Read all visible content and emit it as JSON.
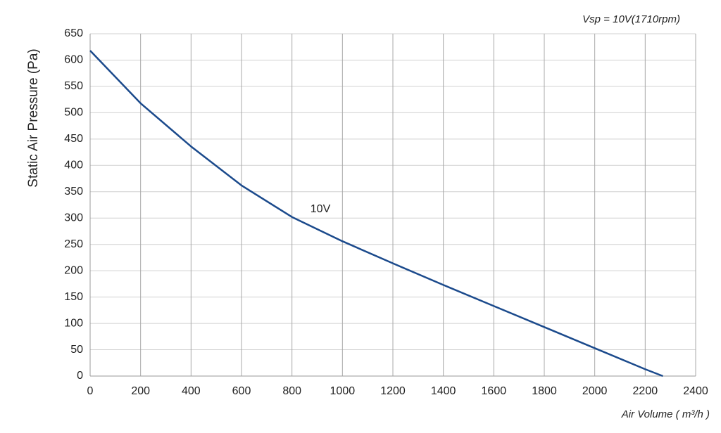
{
  "chart_data": {
    "type": "line",
    "title": "Vsp = 10V(1710rpm)",
    "x_label": "Air Volume ( m³/h )",
    "y_label": "Static Air Pressure  (Pa)",
    "annotation": "10V",
    "x": [
      0,
      200,
      400,
      600,
      800,
      1000,
      1200,
      1400,
      1600,
      1800,
      2000,
      2200,
      2270
    ],
    "series": [
      {
        "name": "10V",
        "color": "#1b4a8c",
        "values": [
          618,
          518,
          436,
          362,
          302,
          256,
          214,
          173,
          133,
          93,
          53,
          13,
          0
        ]
      }
    ],
    "xlim": [
      0,
      2400
    ],
    "xticks": [
      0,
      200,
      400,
      600,
      800,
      1000,
      1200,
      1400,
      1600,
      1800,
      2000,
      2200,
      2400
    ],
    "ylim": [
      0,
      650
    ],
    "yticks": [
      0,
      50,
      100,
      150,
      200,
      250,
      300,
      350,
      400,
      450,
      500,
      550,
      600,
      650
    ],
    "grid": true
  }
}
